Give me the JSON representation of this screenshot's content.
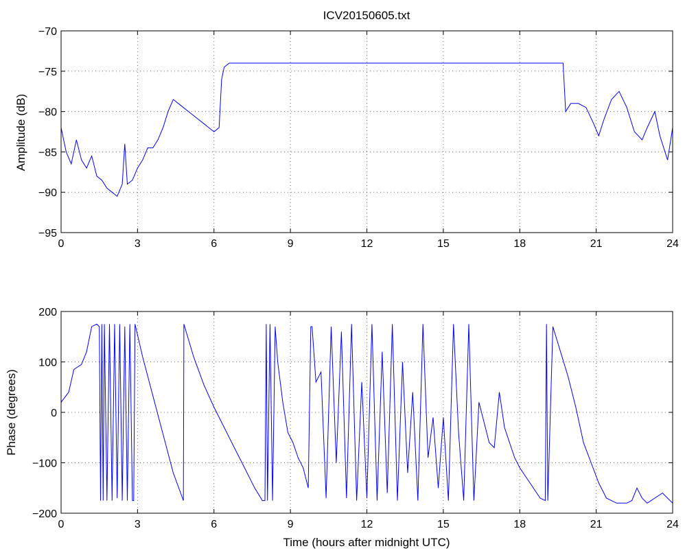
{
  "title": "ICV20150605.txt",
  "colors": {
    "series": "#0000ff",
    "axes": "#000000",
    "background": "#ffffff"
  },
  "chart_data": [
    {
      "type": "line",
      "title": "ICV20150605.txt",
      "xlabel": "",
      "ylabel": "Amplitude (dB)",
      "xlim": [
        0,
        24
      ],
      "ylim": [
        -95,
        -70
      ],
      "xticks": [
        0,
        3,
        6,
        9,
        12,
        15,
        18,
        21,
        24
      ],
      "yticks": [
        -95,
        -90,
        -85,
        -80,
        -75,
        -70
      ],
      "xtick_labels": [
        "0",
        "3",
        "6",
        "9",
        "12",
        "15",
        "18",
        "21",
        "24"
      ],
      "ytick_labels": [
        "−95",
        "−90",
        "−85",
        "−80",
        "−75",
        "−70"
      ],
      "grid": true,
      "series": [
        {
          "x": [
            0,
            0.2,
            0.4,
            0.6,
            0.8,
            1.0,
            1.2,
            1.4,
            1.6,
            1.8,
            2.0,
            2.2,
            2.4,
            2.5,
            2.6,
            2.8,
            3.0,
            3.2,
            3.4,
            3.6,
            3.8,
            4.0,
            4.2,
            4.4,
            4.6,
            4.8,
            5.0,
            5.2,
            5.4,
            5.6,
            5.8,
            6.0,
            6.2,
            6.3,
            6.4,
            6.6,
            7.0,
            8.0,
            9.0,
            10.0,
            11.0,
            12.0,
            13.0,
            14.0,
            15.0,
            16.0,
            17.0,
            18.0,
            19.0,
            19.7,
            19.8,
            20.0,
            20.3,
            20.6,
            20.9,
            21.1,
            21.3,
            21.6,
            21.9,
            22.2,
            22.5,
            22.8,
            23.0,
            23.3,
            23.5,
            23.8,
            24.0
          ],
          "y": [
            -82,
            -85,
            -86.5,
            -83.5,
            -86,
            -87,
            -85.5,
            -88,
            -88.5,
            -89.5,
            -90,
            -90.5,
            -89,
            -84,
            -89,
            -88.5,
            -87,
            -86,
            -84.5,
            -84.5,
            -83.5,
            -82,
            -80,
            -78.5,
            -79,
            -79.5,
            -80,
            -80.5,
            -81,
            -81.5,
            -82,
            -82.5,
            -82,
            -76,
            -74.5,
            -74,
            -74,
            -74,
            -74,
            -74,
            -74,
            -74,
            -74,
            -74,
            -74,
            -74,
            -74,
            -74,
            -74,
            -74,
            -80,
            -79,
            -79,
            -79.5,
            -81.5,
            -83,
            -81,
            -78.5,
            -77.5,
            -79.5,
            -82.5,
            -83.5,
            -82,
            -80,
            -83,
            -86,
            -82
          ]
        }
      ]
    },
    {
      "type": "line",
      "title": "",
      "xlabel": "Time (hours after midnight UTC)",
      "ylabel": "Phase (degrees)",
      "xlim": [
        0,
        24
      ],
      "ylim": [
        -200,
        200
      ],
      "xticks": [
        0,
        3,
        6,
        9,
        12,
        15,
        18,
        21,
        24
      ],
      "yticks": [
        -200,
        -100,
        0,
        100,
        200
      ],
      "xtick_labels": [
        "0",
        "3",
        "6",
        "9",
        "12",
        "15",
        "18",
        "21",
        "24"
      ],
      "ytick_labels": [
        "−200",
        "−100",
        "0",
        "100",
        "200"
      ],
      "grid": true,
      "series": [
        {
          "x": [
            0,
            0.3,
            0.5,
            0.8,
            1.0,
            1.2,
            1.4,
            1.5,
            1.55,
            1.6,
            1.65,
            1.7,
            1.8,
            1.9,
            2.0,
            2.1,
            2.2,
            2.3,
            2.4,
            2.5,
            2.6,
            2.7,
            2.8,
            2.85,
            2.9,
            3.2,
            3.8,
            4.4,
            4.8,
            4.82,
            5.2,
            5.6,
            6.0,
            6.4,
            6.8,
            7.2,
            7.6,
            7.9,
            8.0,
            8.05,
            8.1,
            8.2,
            8.3,
            8.4,
            8.5,
            8.7,
            8.9,
            9.1,
            9.3,
            9.5,
            9.7,
            9.8,
            9.85,
            10.0,
            10.2,
            10.4,
            10.6,
            10.8,
            11.0,
            11.2,
            11.4,
            11.6,
            11.8,
            12.0,
            12.2,
            12.4,
            12.6,
            12.8,
            13.0,
            13.2,
            13.4,
            13.6,
            13.8,
            14.0,
            14.2,
            14.4,
            14.6,
            14.8,
            15.0,
            15.2,
            15.4,
            15.6,
            15.8,
            16.0,
            16.2,
            16.4,
            16.6,
            16.8,
            17.0,
            17.2,
            17.4,
            17.6,
            17.8,
            18.0,
            18.4,
            18.8,
            19.0,
            19.05,
            19.1,
            19.3,
            19.6,
            19.9,
            20.2,
            20.5,
            20.8,
            21.1,
            21.4,
            21.8,
            22.2,
            22.4,
            22.6,
            22.8,
            23.0,
            23.3,
            23.6,
            23.8,
            24.0
          ],
          "y": [
            20,
            40,
            85,
            95,
            120,
            170,
            175,
            170,
            -175,
            175,
            -175,
            175,
            -175,
            175,
            -175,
            175,
            -170,
            175,
            -175,
            170,
            -175,
            175,
            -175,
            -175,
            175,
            110,
            -5,
            -120,
            -175,
            175,
            110,
            55,
            10,
            -30,
            -70,
            -110,
            -150,
            -175,
            -175,
            175,
            -175,
            175,
            -175,
            170,
            100,
            20,
            -40,
            -60,
            -90,
            -110,
            -150,
            170,
            170,
            60,
            80,
            -170,
            170,
            -100,
            160,
            -170,
            175,
            -175,
            60,
            -170,
            175,
            -175,
            120,
            -160,
            175,
            -175,
            100,
            -120,
            40,
            -175,
            175,
            -90,
            -10,
            -150,
            -10,
            -175,
            175,
            -40,
            -175,
            175,
            -175,
            20,
            -20,
            -60,
            -70,
            40,
            -30,
            -60,
            -90,
            -110,
            -140,
            -170,
            -175,
            175,
            -175,
            170,
            120,
            70,
            10,
            -60,
            -100,
            -140,
            -170,
            -180,
            -180,
            -175,
            -150,
            -170,
            -180,
            -170,
            -160,
            -170,
            -180
          ]
        }
      ]
    }
  ]
}
